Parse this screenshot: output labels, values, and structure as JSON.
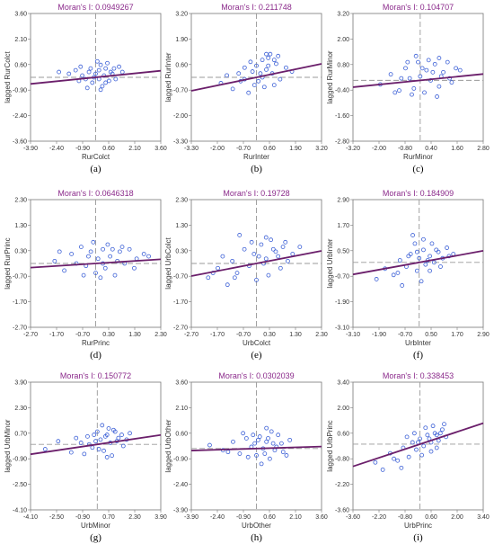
{
  "colors": {
    "title": "#8b2a8b",
    "point": "#3b5fd6",
    "fit_line": "#6b1f6b",
    "reference": "#999999",
    "frame": "#777777"
  },
  "chart_data": [
    {
      "type": "scatter",
      "caption": "(a)",
      "title": "Moran's I: 0.0949267",
      "xlabel": "RurColct",
      "ylabel": "lagged RurColct",
      "xlim": [
        -3.9,
        3.9
      ],
      "ylim": [
        -3.6,
        3.6
      ],
      "xticks": [
        "-3.90",
        "-2.40",
        "-0.90",
        "0.60",
        "2.10",
        "3.60"
      ],
      "yticks": [
        "3.60",
        "2.10",
        "0.60",
        "-0.90",
        "-2.40",
        "-3.60"
      ],
      "slope": 0.0949267,
      "intercept": 0,
      "points": [
        [
          -0.4,
          0.3
        ],
        [
          0.2,
          -0.1
        ],
        [
          0.6,
          0.5
        ],
        [
          -0.8,
          0.1
        ],
        [
          1.0,
          0.2
        ],
        [
          0.3,
          0.7
        ],
        [
          -0.2,
          -0.3
        ],
        [
          0.8,
          -0.2
        ],
        [
          -1.2,
          0.4
        ],
        [
          0.5,
          0.1
        ],
        [
          1.4,
          0.6
        ],
        [
          -0.6,
          -0.1
        ],
        [
          0.1,
          0.9
        ],
        [
          -0.3,
          0.5
        ],
        [
          0.9,
          0.3
        ],
        [
          -1.6,
          0.2
        ],
        [
          0.4,
          -0.5
        ],
        [
          1.2,
          -0.1
        ],
        [
          -0.9,
          0.6
        ],
        [
          0.7,
          0.8
        ],
        [
          0.0,
          0.2
        ],
        [
          -0.5,
          -0.6
        ],
        [
          1.6,
          0.3
        ],
        [
          0.2,
          0.4
        ],
        [
          -1.0,
          -0.2
        ],
        [
          0.6,
          -0.3
        ],
        [
          -2.2,
          0.3
        ],
        [
          -0.1,
          0.0
        ],
        [
          1.1,
          0.5
        ],
        [
          0.3,
          -0.7
        ]
      ]
    },
    {
      "type": "scatter",
      "caption": "(b)",
      "title": "Moran's I: 0.211748",
      "xlabel": "RurInter",
      "ylabel": "lagged RurInter",
      "xlim": [
        -3.3,
        3.3
      ],
      "ylim": [
        -3.3,
        3.3
      ],
      "xticks": [
        "-3.30",
        "-2.00",
        "-0.70",
        "0.60",
        "1.90",
        "3.20"
      ],
      "yticks": [
        "3.20",
        "1.90",
        "0.60",
        "-0.70",
        "-2.00",
        "-3.30"
      ],
      "slope": 0.211748,
      "intercept": 0,
      "points": [
        [
          -1.8,
          -0.3
        ],
        [
          -1.2,
          -0.6
        ],
        [
          -0.9,
          0.2
        ],
        [
          -0.6,
          0.5
        ],
        [
          -0.4,
          -0.8
        ],
        [
          -0.2,
          0.3
        ],
        [
          0.0,
          0.6
        ],
        [
          0.1,
          -0.2
        ],
        [
          0.3,
          0.9
        ],
        [
          0.5,
          0.4
        ],
        [
          0.6,
          1.0
        ],
        [
          0.8,
          0.2
        ],
        [
          1.0,
          0.7
        ],
        [
          1.2,
          -0.1
        ],
        [
          1.5,
          0.5
        ],
        [
          0.4,
          -0.5
        ],
        [
          -0.8,
          -0.2
        ],
        [
          0.7,
          1.2
        ],
        [
          0.9,
          -0.4
        ],
        [
          -0.3,
          0.8
        ],
        [
          1.8,
          0.3
        ],
        [
          0.2,
          0.2
        ],
        [
          -1.5,
          0.1
        ],
        [
          0.6,
          0.6
        ],
        [
          1.1,
          1.1
        ],
        [
          -0.1,
          -0.4
        ],
        [
          0.9,
          0.9
        ],
        [
          0.5,
          1.2
        ],
        [
          -0.6,
          -0.1
        ],
        [
          0.3,
          0.0
        ]
      ]
    },
    {
      "type": "scatter",
      "caption": "(c)",
      "title": "Moran's I: 0.104707",
      "xlabel": "RurMinor",
      "ylabel": "lagged RurMinor",
      "xlim": [
        -3.2,
        3.0
      ],
      "ylim": [
        -3.0,
        3.3
      ],
      "xticks": [
        "-3.20",
        "-2.00",
        "-0.80",
        "0.40",
        "1.60",
        "2.80"
      ],
      "yticks": [
        "3.20",
        "2.00",
        "0.80",
        "-0.40",
        "-1.60",
        "-2.80"
      ],
      "slope": 0.104707,
      "intercept": 0,
      "points": [
        [
          -1.9,
          -0.2
        ],
        [
          -1.4,
          0.3
        ],
        [
          -1.0,
          -0.5
        ],
        [
          -0.7,
          0.6
        ],
        [
          -0.5,
          0.1
        ],
        [
          -0.3,
          -0.4
        ],
        [
          -0.1,
          0.9
        ],
        [
          0.0,
          0.2
        ],
        [
          0.2,
          -0.6
        ],
        [
          0.3,
          0.5
        ],
        [
          0.5,
          0.0
        ],
        [
          0.7,
          0.8
        ],
        [
          0.9,
          -0.3
        ],
        [
          1.1,
          0.4
        ],
        [
          1.3,
          0.9
        ],
        [
          1.5,
          -0.1
        ],
        [
          1.7,
          0.6
        ],
        [
          -0.2,
          1.2
        ],
        [
          0.4,
          1.0
        ],
        [
          0.8,
          -0.8
        ],
        [
          -0.9,
          0.1
        ],
        [
          1.0,
          0.2
        ],
        [
          -0.4,
          -0.7
        ],
        [
          0.6,
          0.4
        ],
        [
          1.9,
          0.5
        ],
        [
          0.1,
          0.6
        ],
        [
          -1.2,
          -0.6
        ],
        [
          0.9,
          1.1
        ],
        [
          1.4,
          0.1
        ],
        [
          -0.6,
          0.9
        ]
      ]
    },
    {
      "type": "scatter",
      "caption": "(d)",
      "title": "Moran's I: 0.0646318",
      "xlabel": "RurPrinc",
      "ylabel": "lagged RurPrinc",
      "xlim": [
        -2.7,
        2.7
      ],
      "ylim": [
        -2.7,
        2.7
      ],
      "xticks": [
        "-2.70",
        "-1.70",
        "-0.70",
        "0.30",
        "1.30",
        "2.30"
      ],
      "yticks": [
        "2.30",
        "1.30",
        "0.30",
        "-0.70",
        "-1.70",
        "-2.70"
      ],
      "slope": 0.0646318,
      "intercept": 0,
      "points": [
        [
          -1.7,
          0.1
        ],
        [
          -1.3,
          -0.3
        ],
        [
          -1.0,
          0.4
        ],
        [
          -0.6,
          0.7
        ],
        [
          -0.4,
          -0.1
        ],
        [
          -0.2,
          0.5
        ],
        [
          0.0,
          -0.4
        ],
        [
          0.1,
          0.2
        ],
        [
          0.3,
          0.6
        ],
        [
          0.4,
          -0.2
        ],
        [
          0.6,
          0.3
        ],
        [
          0.8,
          -0.5
        ],
        [
          1.0,
          0.5
        ],
        [
          1.2,
          0.0
        ],
        [
          1.4,
          0.6
        ],
        [
          1.7,
          0.2
        ],
        [
          2.0,
          0.4
        ],
        [
          -0.8,
          0.0
        ],
        [
          0.2,
          -0.6
        ],
        [
          0.5,
          0.8
        ],
        [
          -0.1,
          0.9
        ],
        [
          0.9,
          0.1
        ],
        [
          1.6,
          -0.2
        ],
        [
          -1.5,
          0.5
        ],
        [
          0.7,
          0.6
        ],
        [
          -0.5,
          -0.5
        ],
        [
          1.1,
          0.7
        ],
        [
          0.3,
          0.0
        ],
        [
          2.2,
          0.3
        ],
        [
          -0.3,
          0.3
        ]
      ]
    },
    {
      "type": "scatter",
      "caption": "(e)",
      "title": "Moran's I: 0.19728",
      "xlabel": "UrbColct",
      "ylabel": "lagged UrbColct",
      "xlim": [
        -2.7,
        2.7
      ],
      "ylim": [
        -2.7,
        2.7
      ],
      "xticks": [
        "-2.70",
        "-1.70",
        "-0.70",
        "0.30",
        "1.30",
        "2.30"
      ],
      "yticks": [
        "2.30",
        "1.30",
        "0.30",
        "-0.70",
        "-1.70",
        "-2.70"
      ],
      "slope": 0.19728,
      "intercept": 0,
      "points": [
        [
          -2.0,
          -0.6
        ],
        [
          -1.6,
          -0.2
        ],
        [
          -1.2,
          -0.9
        ],
        [
          -1.0,
          0.1
        ],
        [
          -0.8,
          -0.4
        ],
        [
          -0.5,
          0.6
        ],
        [
          -0.3,
          -0.1
        ],
        [
          -0.1,
          0.4
        ],
        [
          0.0,
          -0.7
        ],
        [
          0.2,
          0.8
        ],
        [
          0.4,
          0.2
        ],
        [
          0.6,
          1.0
        ],
        [
          0.8,
          0.5
        ],
        [
          1.0,
          -0.2
        ],
        [
          1.2,
          0.9
        ],
        [
          1.5,
          0.4
        ],
        [
          1.8,
          0.7
        ],
        [
          -0.7,
          1.2
        ],
        [
          0.3,
          0.0
        ],
        [
          0.9,
          0.3
        ],
        [
          -1.4,
          0.3
        ],
        [
          0.5,
          -0.5
        ],
        [
          1.3,
          0.1
        ],
        [
          -0.2,
          0.9
        ],
        [
          0.7,
          0.6
        ],
        [
          -0.9,
          -0.6
        ],
        [
          1.1,
          0.7
        ],
        [
          0.1,
          0.3
        ],
        [
          -1.8,
          -0.4
        ],
        [
          0.4,
          1.1
        ]
      ]
    },
    {
      "type": "scatter",
      "caption": "(f)",
      "title": "Moran's I: 0.184909",
      "xlabel": "UrbInter",
      "ylabel": "lagged UrbInter",
      "xlim": [
        -3.1,
        3.0
      ],
      "ylim": [
        -3.1,
        3.0
      ],
      "xticks": [
        "-3.10",
        "-1.90",
        "-0.70",
        "0.50",
        "1.70",
        "2.90"
      ],
      "yticks": [
        "2.90",
        "1.70",
        "0.50",
        "-0.70",
        "-1.90",
        "-3.10"
      ],
      "slope": 0.184909,
      "intercept": 0,
      "points": [
        [
          -2.0,
          -0.8
        ],
        [
          -1.6,
          -0.3
        ],
        [
          -1.2,
          -0.6
        ],
        [
          -0.9,
          0.1
        ],
        [
          -0.6,
          -0.2
        ],
        [
          -0.4,
          0.4
        ],
        [
          -0.2,
          0.9
        ],
        [
          -0.1,
          -0.4
        ],
        [
          0.0,
          0.2
        ],
        [
          0.2,
          0.6
        ],
        [
          0.3,
          -0.1
        ],
        [
          0.5,
          0.3
        ],
        [
          0.7,
          0.0
        ],
        [
          0.9,
          0.5
        ],
        [
          1.1,
          0.2
        ],
        [
          1.3,
          0.7
        ],
        [
          1.6,
          0.4
        ],
        [
          -0.3,
          1.3
        ],
        [
          0.1,
          -0.9
        ],
        [
          0.6,
          0.9
        ],
        [
          -0.8,
          -1.1
        ],
        [
          0.4,
          0.1
        ],
        [
          1.0,
          -0.2
        ],
        [
          -0.5,
          0.3
        ],
        [
          0.8,
          0.6
        ],
        [
          -1.0,
          -0.5
        ],
        [
          0.2,
          1.1
        ],
        [
          1.4,
          0.3
        ],
        [
          -0.1,
          0.5
        ],
        [
          0.5,
          -0.4
        ]
      ]
    },
    {
      "type": "scatter",
      "caption": "(g)",
      "title": "Moran's I: 0.150772",
      "xlabel": "UrbMinor",
      "ylabel": "lagged UrbMinor",
      "xlim": [
        -4.1,
        3.9
      ],
      "ylim": [
        -4.1,
        3.9
      ],
      "xticks": [
        "-4.10",
        "-2.50",
        "-0.90",
        "0.70",
        "2.30",
        "3.90"
      ],
      "yticks": [
        "3.90",
        "2.30",
        "0.70",
        "-0.90",
        "-2.50",
        "-4.10"
      ],
      "slope": 0.150772,
      "intercept": 0,
      "points": [
        [
          -3.2,
          -0.3
        ],
        [
          -2.4,
          0.2
        ],
        [
          -1.6,
          -0.5
        ],
        [
          -1.0,
          0.1
        ],
        [
          -0.6,
          0.5
        ],
        [
          -0.3,
          -0.2
        ],
        [
          0.0,
          0.8
        ],
        [
          0.2,
          0.3
        ],
        [
          0.4,
          -0.4
        ],
        [
          0.6,
          0.6
        ],
        [
          0.8,
          0.1
        ],
        [
          1.0,
          0.9
        ],
        [
          1.3,
          0.4
        ],
        [
          1.6,
          -0.1
        ],
        [
          2.0,
          0.7
        ],
        [
          -0.8,
          -0.6
        ],
        [
          0.3,
          1.2
        ],
        [
          0.9,
          -0.7
        ],
        [
          -0.1,
          0.2
        ],
        [
          0.5,
          0.5
        ],
        [
          1.2,
          0.2
        ],
        [
          -1.3,
          0.4
        ],
        [
          0.7,
          1.0
        ],
        [
          0.1,
          -0.3
        ],
        [
          1.5,
          0.6
        ],
        [
          -0.5,
          0.0
        ],
        [
          0.6,
          -0.8
        ],
        [
          1.8,
          0.3
        ],
        [
          -0.2,
          0.6
        ],
        [
          1.1,
          0.8
        ]
      ]
    },
    {
      "type": "scatter",
      "caption": "(h)",
      "title": "Moran's I: 0.0302039",
      "xlabel": "UrbOther",
      "ylabel": "lagged UrbOther",
      "xlim": [
        -3.9,
        3.9
      ],
      "ylim": [
        -3.6,
        3.9
      ],
      "xticks": [
        "-3.90",
        "-2.40",
        "-0.90",
        "0.60",
        "2.10",
        "3.60"
      ],
      "yticks": [
        "3.60",
        "2.10",
        "0.60",
        "-0.90",
        "-2.40",
        "-3.90"
      ],
      "slope": 0.0302039,
      "intercept": 0,
      "points": [
        [
          -2.8,
          0.2
        ],
        [
          -2.0,
          -0.1
        ],
        [
          -1.4,
          0.4
        ],
        [
          -1.0,
          -0.3
        ],
        [
          -0.6,
          0.6
        ],
        [
          -0.3,
          0.1
        ],
        [
          0.0,
          -0.4
        ],
        [
          0.2,
          0.7
        ],
        [
          0.4,
          0.0
        ],
        [
          0.6,
          0.4
        ],
        [
          0.8,
          -0.6
        ],
        [
          1.0,
          0.3
        ],
        [
          1.3,
          0.8
        ],
        [
          1.6,
          -0.2
        ],
        [
          2.0,
          0.5
        ],
        [
          -0.8,
          0.9
        ],
        [
          0.3,
          -0.9
        ],
        [
          0.9,
          1.0
        ],
        [
          -0.1,
          0.3
        ],
        [
          0.5,
          -0.3
        ],
        [
          1.2,
          0.1
        ],
        [
          -1.7,
          -0.2
        ],
        [
          0.7,
          0.6
        ],
        [
          0.1,
          0.5
        ],
        [
          1.5,
          0.3
        ],
        [
          -0.5,
          -0.5
        ],
        [
          0.6,
          1.2
        ],
        [
          1.8,
          -0.4
        ],
        [
          -0.2,
          0.8
        ],
        [
          1.1,
          -0.1
        ]
      ]
    },
    {
      "type": "scatter",
      "caption": "(i)",
      "title": "Moran's I: 0.338453",
      "xlabel": "UrbPrinc",
      "ylabel": "lagged UrbPrinc",
      "xlim": [
        -3.6,
        3.4
      ],
      "ylim": [
        -3.6,
        3.4
      ],
      "xticks": [
        "-3.60",
        "-2.20",
        "-0.80",
        "0.60",
        "2.00",
        "3.40"
      ],
      "yticks": [
        "3.40",
        "2.00",
        "0.60",
        "-0.80",
        "-2.20",
        "-3.60"
      ],
      "slope": 0.338453,
      "intercept": 0,
      "points": [
        [
          -2.4,
          -1.0
        ],
        [
          -2.0,
          -1.4
        ],
        [
          -1.6,
          -0.5
        ],
        [
          -1.2,
          -0.9
        ],
        [
          -0.9,
          -0.2
        ],
        [
          -0.6,
          -0.7
        ],
        [
          -0.4,
          0.1
        ],
        [
          -0.2,
          -0.3
        ],
        [
          0.0,
          0.3
        ],
        [
          0.2,
          -0.1
        ],
        [
          0.4,
          0.5
        ],
        [
          0.6,
          0.1
        ],
        [
          0.8,
          0.6
        ],
        [
          1.0,
          0.2
        ],
        [
          1.2,
          0.8
        ],
        [
          1.4,
          0.4
        ],
        [
          -0.7,
          0.4
        ],
        [
          0.3,
          0.9
        ],
        [
          0.9,
          -0.2
        ],
        [
          -1.0,
          -1.3
        ],
        [
          0.5,
          0.3
        ],
        [
          0.1,
          -0.6
        ],
        [
          1.1,
          0.6
        ],
        [
          -0.3,
          0.6
        ],
        [
          0.7,
          1.0
        ],
        [
          -1.4,
          -0.8
        ],
        [
          0.6,
          -0.4
        ],
        [
          1.3,
          1.1
        ],
        [
          -0.1,
          0.1
        ],
        [
          0.9,
          0.5
        ]
      ]
    }
  ]
}
